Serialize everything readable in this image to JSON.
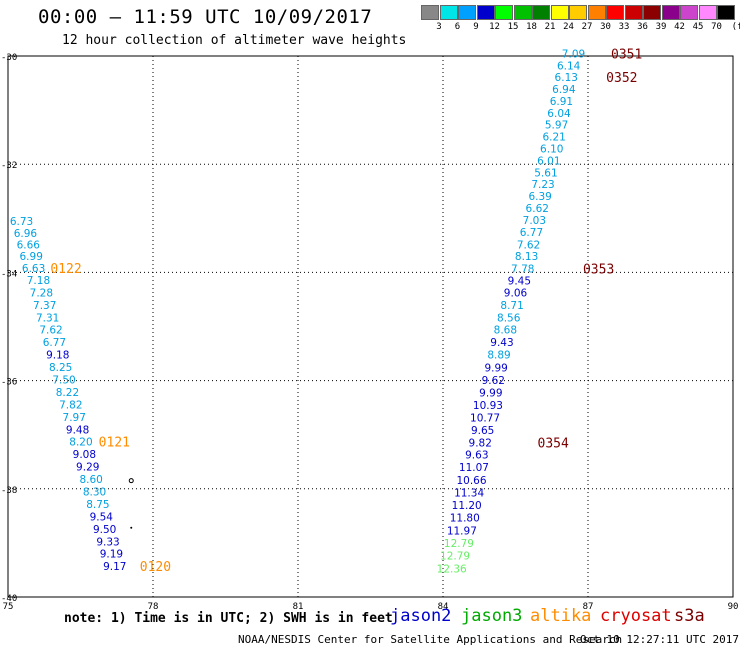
{
  "header": {
    "title": "00:00 – 11:59 UTC 10/09/2017",
    "subtitle": "12 hour collection of altimeter wave heights"
  },
  "legend": {
    "unit": "(ft)",
    "bins": [
      {
        "label": "3",
        "color": "#888888"
      },
      {
        "label": "6",
        "color": "#00e5e5"
      },
      {
        "label": "9",
        "color": "#00a0ff"
      },
      {
        "label": "12",
        "color": "#0000cc"
      },
      {
        "label": "15",
        "color": "#00ff00"
      },
      {
        "label": "18",
        "color": "#00c000"
      },
      {
        "label": "21",
        "color": "#008000"
      },
      {
        "label": "24",
        "color": "#ffff00"
      },
      {
        "label": "27",
        "color": "#ffcc00"
      },
      {
        "label": "30",
        "color": "#ff8000"
      },
      {
        "label": "33",
        "color": "#ff0000"
      },
      {
        "label": "36",
        "color": "#cc0000"
      },
      {
        "label": "39",
        "color": "#8b0000"
      },
      {
        "label": "42",
        "color": "#8b008b"
      },
      {
        "label": "45",
        "color": "#cc44cc"
      },
      {
        "label": "70",
        "color": "#ff88ff"
      },
      {
        "label": "",
        "color": "#000000"
      }
    ]
  },
  "axes": {
    "x_ticks": [
      "75",
      "78",
      "81",
      "84",
      "87",
      "90"
    ],
    "y_ticks": [
      "-30",
      "-32",
      "-34",
      "-36",
      "-38",
      "-40"
    ]
  },
  "colors": {
    "jason2": "#0000cc",
    "jason3": "#00aa00",
    "altika": "#ff8c00",
    "cryosat": "#dd0000",
    "s3a": "#7a0000",
    "light_blue": "#00a0e0",
    "light_green": "#66ee66"
  },
  "tracks": [
    {
      "name": "west",
      "obs": [
        {
          "lon": 75.28,
          "lat": -33.05,
          "val": "6.73",
          "c": "light_blue"
        },
        {
          "lon": 75.36,
          "lat": -33.27,
          "val": "6.96",
          "c": "light_blue"
        },
        {
          "lon": 75.42,
          "lat": -33.48,
          "val": "6.66",
          "c": "light_blue"
        },
        {
          "lon": 75.48,
          "lat": -33.7,
          "val": "6.99",
          "c": "light_blue"
        },
        {
          "lon": 75.53,
          "lat": -33.92,
          "val": "6.63",
          "c": "light_blue"
        },
        {
          "lon": 75.63,
          "lat": -34.14,
          "val": "7.18",
          "c": "light_blue"
        },
        {
          "lon": 75.69,
          "lat": -34.37,
          "val": "7.28",
          "c": "light_blue"
        },
        {
          "lon": 75.76,
          "lat": -34.6,
          "val": "7.37",
          "c": "light_blue"
        },
        {
          "lon": 75.82,
          "lat": -34.83,
          "val": "7.31",
          "c": "light_blue"
        },
        {
          "lon": 75.89,
          "lat": -35.06,
          "val": "7.62",
          "c": "light_blue"
        },
        {
          "lon": 75.96,
          "lat": -35.29,
          "val": "6.77",
          "c": "light_blue"
        },
        {
          "lon": 76.03,
          "lat": -35.52,
          "val": "9.18",
          "c": "jason2"
        },
        {
          "lon": 76.09,
          "lat": -35.75,
          "val": "8.25",
          "c": "light_blue"
        },
        {
          "lon": 76.16,
          "lat": -35.98,
          "val": "7.50",
          "c": "light_blue"
        },
        {
          "lon": 76.23,
          "lat": -36.21,
          "val": "8.22",
          "c": "light_blue"
        },
        {
          "lon": 76.3,
          "lat": -36.44,
          "val": "7.82",
          "c": "light_blue"
        },
        {
          "lon": 76.37,
          "lat": -36.67,
          "val": "7.97",
          "c": "light_blue"
        },
        {
          "lon": 76.44,
          "lat": -36.9,
          "val": "9.48",
          "c": "jason2"
        },
        {
          "lon": 76.51,
          "lat": -37.13,
          "val": "8.20",
          "c": "light_blue"
        },
        {
          "lon": 76.58,
          "lat": -37.36,
          "val": "9.08",
          "c": "jason2"
        },
        {
          "lon": 76.65,
          "lat": -37.59,
          "val": "9.29",
          "c": "jason2"
        },
        {
          "lon": 76.72,
          "lat": -37.82,
          "val": "8.60",
          "c": "light_blue"
        },
        {
          "lon": 76.79,
          "lat": -38.05,
          "val": "8.30",
          "c": "light_blue"
        },
        {
          "lon": 76.86,
          "lat": -38.28,
          "val": "8.75",
          "c": "light_blue"
        },
        {
          "lon": 76.93,
          "lat": -38.51,
          "val": "9.54",
          "c": "jason2"
        },
        {
          "lon": 77.0,
          "lat": -38.74,
          "val": "9.50",
          "c": "jason2"
        },
        {
          "lon": 77.07,
          "lat": -38.97,
          "val": "9.33",
          "c": "jason2"
        },
        {
          "lon": 77.14,
          "lat": -39.2,
          "val": "9.19",
          "c": "jason2"
        },
        {
          "lon": 77.21,
          "lat": -39.43,
          "val": "9.17",
          "c": "jason2"
        }
      ],
      "times": [
        {
          "lon": 76.2,
          "lat": -33.92,
          "text": "0122",
          "c": "altika"
        },
        {
          "lon": 77.2,
          "lat": -37.13,
          "text": "0121",
          "c": "altika"
        },
        {
          "lon": 78.05,
          "lat": -39.43,
          "text": "0120",
          "c": "altika"
        }
      ]
    },
    {
      "name": "east",
      "obs": [
        {
          "lon": 86.7,
          "lat": -29.95,
          "val": "7.09",
          "c": "light_blue"
        },
        {
          "lon": 86.6,
          "lat": -30.18,
          "val": "6.14",
          "c": "light_blue"
        },
        {
          "lon": 86.55,
          "lat": -30.39,
          "val": "6.13",
          "c": "light_blue"
        },
        {
          "lon": 86.5,
          "lat": -30.61,
          "val": "6.94",
          "c": "light_blue"
        },
        {
          "lon": 86.45,
          "lat": -30.83,
          "val": "6.91",
          "c": "light_blue"
        },
        {
          "lon": 86.4,
          "lat": -31.05,
          "val": "6.04",
          "c": "light_blue"
        },
        {
          "lon": 86.35,
          "lat": -31.27,
          "val": "5.97",
          "c": "light_blue"
        },
        {
          "lon": 86.3,
          "lat": -31.49,
          "val": "6.21",
          "c": "light_blue"
        },
        {
          "lon": 86.25,
          "lat": -31.71,
          "val": "6.10",
          "c": "light_blue"
        },
        {
          "lon": 86.19,
          "lat": -31.93,
          "val": "6.01",
          "c": "light_blue"
        },
        {
          "lon": 86.13,
          "lat": -32.15,
          "val": "5.61",
          "c": "light_blue"
        },
        {
          "lon": 86.07,
          "lat": -32.37,
          "val": "7.23",
          "c": "light_blue"
        },
        {
          "lon": 86.01,
          "lat": -32.59,
          "val": "6.39",
          "c": "light_blue"
        },
        {
          "lon": 85.95,
          "lat": -32.81,
          "val": "6.62",
          "c": "light_blue"
        },
        {
          "lon": 85.89,
          "lat": -33.03,
          "val": "7.03",
          "c": "light_blue"
        },
        {
          "lon": 85.83,
          "lat": -33.25,
          "val": "6.77",
          "c": "light_blue"
        },
        {
          "lon": 85.77,
          "lat": -33.48,
          "val": "7.62",
          "c": "light_blue"
        },
        {
          "lon": 85.73,
          "lat": -33.7,
          "val": "8.13",
          "c": "light_blue"
        },
        {
          "lon": 85.65,
          "lat": -33.93,
          "val": "7.78",
          "c": "light_blue"
        },
        {
          "lon": 85.58,
          "lat": -34.15,
          "val": "9.45",
          "c": "jason2"
        },
        {
          "lon": 85.5,
          "lat": -34.37,
          "val": "9.06",
          "c": "jason2"
        },
        {
          "lon": 85.43,
          "lat": -34.6,
          "val": "8.71",
          "c": "light_blue"
        },
        {
          "lon": 85.36,
          "lat": -34.83,
          "val": "8.56",
          "c": "light_blue"
        },
        {
          "lon": 85.29,
          "lat": -35.06,
          "val": "8.68",
          "c": "light_blue"
        },
        {
          "lon": 85.22,
          "lat": -35.29,
          "val": "9.43",
          "c": "jason2"
        },
        {
          "lon": 85.16,
          "lat": -35.52,
          "val": "8.89",
          "c": "light_blue"
        },
        {
          "lon": 85.1,
          "lat": -35.76,
          "val": "9.99",
          "c": "jason2"
        },
        {
          "lon": 85.04,
          "lat": -35.99,
          "val": "9.62",
          "c": "jason2"
        },
        {
          "lon": 84.99,
          "lat": -36.22,
          "val": "9.99",
          "c": "jason2"
        },
        {
          "lon": 84.93,
          "lat": -36.45,
          "val": "10.93",
          "c": "jason2"
        },
        {
          "lon": 84.87,
          "lat": -36.68,
          "val": "10.77",
          "c": "jason2"
        },
        {
          "lon": 84.82,
          "lat": -36.91,
          "val": "9.65",
          "c": "jason2"
        },
        {
          "lon": 84.77,
          "lat": -37.14,
          "val": "9.82",
          "c": "jason2"
        },
        {
          "lon": 84.7,
          "lat": -37.37,
          "val": "9.63",
          "c": "jason2"
        },
        {
          "lon": 84.64,
          "lat": -37.6,
          "val": "11.07",
          "c": "jason2"
        },
        {
          "lon": 84.59,
          "lat": -37.84,
          "val": "10.66",
          "c": "jason2"
        },
        {
          "lon": 84.54,
          "lat": -38.07,
          "val": "11.34",
          "c": "jason2"
        },
        {
          "lon": 84.49,
          "lat": -38.3,
          "val": "11.20",
          "c": "jason2"
        },
        {
          "lon": 84.45,
          "lat": -38.53,
          "val": "11.80",
          "c": "jason2"
        },
        {
          "lon": 84.39,
          "lat": -38.77,
          "val": "11.97",
          "c": "jason2"
        },
        {
          "lon": 84.33,
          "lat": -39.0,
          "val": "12.79",
          "c": "light_green"
        },
        {
          "lon": 84.25,
          "lat": -39.23,
          "val": "12.79",
          "c": "light_green"
        },
        {
          "lon": 84.18,
          "lat": -39.47,
          "val": "12.36",
          "c": "light_green"
        }
      ],
      "times": [
        {
          "lon": 87.8,
          "lat": -29.95,
          "text": "0351",
          "c": "s3a"
        },
        {
          "lon": 87.7,
          "lat": -30.39,
          "text": "0352",
          "c": "s3a"
        },
        {
          "lon": 87.22,
          "lat": -33.93,
          "text": "0353",
          "c": "s3a"
        },
        {
          "lon": 86.28,
          "lat": -37.14,
          "text": "0354",
          "c": "s3a"
        }
      ]
    }
  ],
  "footer": {
    "note": "note: 1) Time is in UTC; 2) SWH is in feet",
    "satellites": [
      {
        "label": "jason2",
        "c": "jason2"
      },
      {
        "label": "jason3",
        "c": "jason3"
      },
      {
        "label": "altika",
        "c": "altika"
      },
      {
        "label": "cryosat",
        "c": "cryosat"
      },
      {
        "label": "s3a",
        "c": "s3a"
      }
    ],
    "credit_left": "NOAA/NESDIS Center for Satellite Applications and Research",
    "credit_right": "Oct 10 12:27:11 UTC 2017"
  }
}
